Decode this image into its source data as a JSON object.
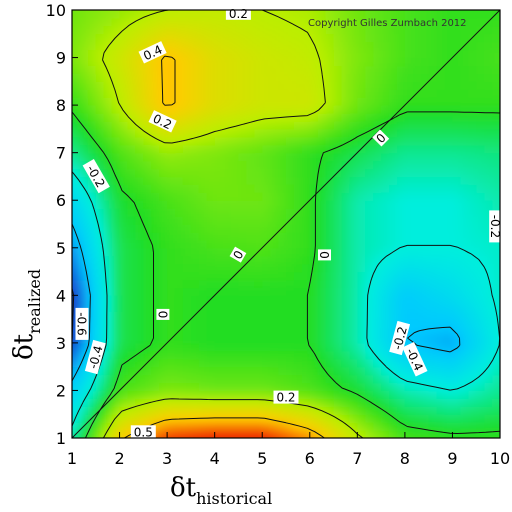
{
  "chart_data": {
    "type": "heatmap",
    "subtype": "contour",
    "x_axis": {
      "symbol": "δt",
      "subscript": "historical",
      "range": [
        1,
        10
      ],
      "ticks": [
        "1",
        "2",
        "3",
        "4",
        "5",
        "6",
        "7",
        "8",
        "9",
        "10"
      ]
    },
    "y_axis": {
      "symbol": "δt",
      "subscript": "realized",
      "range": [
        1,
        10
      ],
      "ticks": [
        "1",
        "2",
        "3",
        "4",
        "5",
        "6",
        "7",
        "8",
        "9",
        "10"
      ]
    },
    "copyright": "Copyright Gilles Zumbach 2012",
    "diagonal_line": true,
    "colorscale": [
      {
        "value": -0.6,
        "color": "#1a3fcc"
      },
      {
        "value": -0.4,
        "color": "#00c8ff"
      },
      {
        "value": -0.2,
        "color": "#00eedd"
      },
      {
        "value": 0.0,
        "color": "#22dd22"
      },
      {
        "value": 0.2,
        "color": "#bbee00"
      },
      {
        "value": 0.4,
        "color": "#ffcc00"
      },
      {
        "value": 0.6,
        "color": "#ee2200"
      }
    ],
    "x": [
      1,
      2,
      3,
      4,
      5,
      6,
      7,
      8,
      9,
      10
    ],
    "y": [
      1,
      2,
      3,
      4,
      5,
      6,
      7,
      8,
      9,
      10
    ],
    "z": [
      [
        -0.15,
        0.38,
        0.58,
        0.62,
        0.62,
        0.48,
        0.22,
        0.05,
        0.02,
        0.02
      ],
      [
        -0.35,
        0.05,
        0.12,
        0.1,
        0.1,
        0.06,
        -0.02,
        -0.15,
        -0.2,
        -0.12
      ],
      [
        -0.6,
        -0.05,
        0.02,
        0.0,
        0.0,
        0.0,
        -0.15,
        -0.4,
        -0.45,
        -0.2
      ],
      [
        -0.62,
        -0.05,
        0.02,
        0.0,
        0.0,
        0.0,
        -0.15,
        -0.38,
        -0.3,
        -0.18
      ],
      [
        -0.48,
        -0.05,
        0.02,
        0.05,
        0.06,
        0.02,
        -0.15,
        -0.2,
        -0.2,
        -0.18
      ],
      [
        -0.32,
        -0.02,
        0.05,
        0.1,
        0.1,
        0.02,
        -0.15,
        -0.2,
        -0.2,
        -0.15
      ],
      [
        -0.12,
        0.06,
        0.15,
        0.12,
        0.08,
        0.02,
        -0.05,
        -0.12,
        -0.12,
        -0.1
      ],
      [
        0.02,
        0.2,
        0.42,
        0.3,
        0.25,
        0.25,
        0.1,
        0.02,
        0.02,
        0.02
      ],
      [
        0.12,
        0.25,
        0.42,
        0.3,
        0.25,
        0.22,
        0.12,
        0.05,
        0.02,
        0.05
      ],
      [
        0.1,
        0.15,
        0.2,
        0.22,
        0.2,
        0.18,
        0.1,
        0.05,
        0.02,
        0.02
      ]
    ],
    "contour_labels": [
      {
        "text": "0.2",
        "x": 4.5,
        "y": 9.92,
        "angle": 0
      },
      {
        "text": "0.4",
        "x": 2.7,
        "y": 9.1,
        "angle": -25
      },
      {
        "text": "0.2",
        "x": 2.9,
        "y": 7.65,
        "angle": 25
      },
      {
        "text": "0",
        "x": 7.5,
        "y": 7.3,
        "angle": -45
      },
      {
        "text": "-0.2",
        "x": 1.5,
        "y": 6.5,
        "angle": 60
      },
      {
        "text": "-0.2",
        "x": 9.9,
        "y": 5.45,
        "angle": 90
      },
      {
        "text": "0",
        "x": 4.5,
        "y": 4.85,
        "angle": -60
      },
      {
        "text": "0",
        "x": 6.3,
        "y": 4.85,
        "angle": 90
      },
      {
        "text": "0",
        "x": 2.9,
        "y": 3.6,
        "angle": 90
      },
      {
        "text": "-0.6",
        "x": 1.2,
        "y": 3.4,
        "angle": 90
      },
      {
        "text": "-0.2",
        "x": 7.9,
        "y": 3.1,
        "angle": -75
      },
      {
        "text": "-0.4",
        "x": 1.5,
        "y": 2.7,
        "angle": -75
      },
      {
        "text": "-0.4",
        "x": 8.2,
        "y": 2.65,
        "angle": 65
      },
      {
        "text": "0.2",
        "x": 5.5,
        "y": 1.85,
        "angle": 0
      },
      {
        "text": "0.5",
        "x": 2.5,
        "y": 1.12,
        "angle": 0
      }
    ]
  }
}
